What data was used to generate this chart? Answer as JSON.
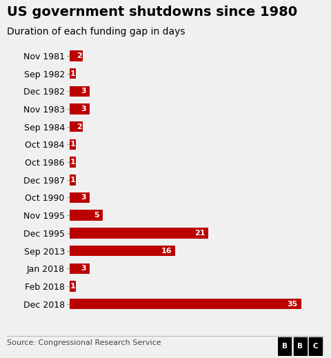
{
  "title": "US government shutdowns since 1980",
  "subtitle": "Duration of each funding gap in days",
  "categories": [
    "Nov 1981",
    "Sep 1982",
    "Dec 1982",
    "Nov 1983",
    "Sep 1984",
    "Oct 1984",
    "Oct 1986",
    "Dec 1987",
    "Oct 1990",
    "Nov 1995",
    "Dec 1995",
    "Sep 2013",
    "Jan 2018",
    "Feb 2018",
    "Dec 2018"
  ],
  "values": [
    2,
    1,
    3,
    3,
    2,
    1,
    1,
    1,
    3,
    5,
    21,
    16,
    3,
    1,
    35
  ],
  "bar_color": "#bb0000",
  "label_color": "#ffffff",
  "background_color": "#f0f0f0",
  "text_color": "#000000",
  "source_text": "Source: Congressional Research Service",
  "bbc_label": "BBC",
  "title_fontsize": 14,
  "subtitle_fontsize": 10,
  "tick_fontsize": 9,
  "source_fontsize": 8,
  "xlim": [
    0,
    38
  ]
}
